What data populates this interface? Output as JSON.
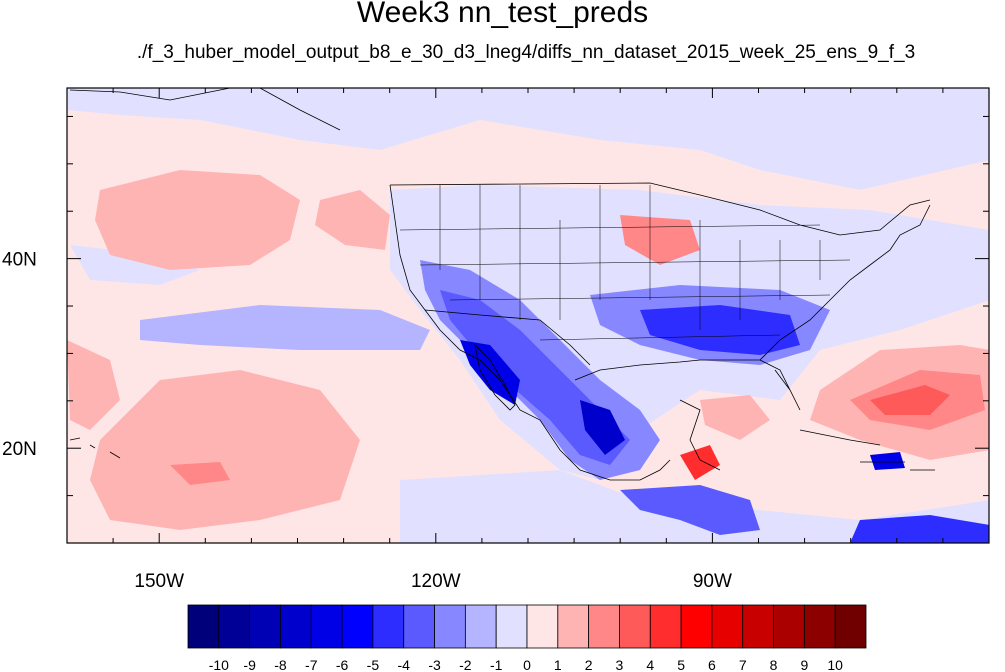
{
  "figure": {
    "title": "Week3 nn_test_preds",
    "subtitle": "./f_3_huber_model_output_b8_e_30_d3_lneg4/diffs_nn_dataset_2015_week_25_ens_9_f_3"
  },
  "map": {
    "projection": "cylindrical-equidistant",
    "lon_range": [
      -160,
      -60
    ],
    "lat_range": [
      10,
      58
    ],
    "lon_tick_labels": [
      {
        "lon": -150,
        "label": "150W"
      },
      {
        "lon": -120,
        "label": "120W"
      },
      {
        "lon": -90,
        "label": "90W"
      }
    ],
    "lat_tick_labels": [
      {
        "lat": 40,
        "label": "40N"
      },
      {
        "lat": 20,
        "label": "20N"
      }
    ],
    "features": [
      "coastlines",
      "us-state-boundaries",
      "country-boundaries"
    ]
  },
  "colorbar": {
    "orientation": "horizontal",
    "labels": [
      "-10",
      "-9",
      "-8",
      "-7",
      "-6",
      "-5",
      "-4",
      "-3",
      "-2",
      "-1",
      "0",
      "1",
      "2",
      "3",
      "4",
      "5",
      "6",
      "7",
      "8",
      "9",
      "10"
    ],
    "colors": [
      "#00007a",
      "#000096",
      "#0000b4",
      "#0000cd",
      "#0000e6",
      "#0000ff",
      "#2d2dff",
      "#5a5aff",
      "#8787ff",
      "#b4b4ff",
      "#e1e1ff",
      "#ffe6e6",
      "#ffb4b4",
      "#ff8787",
      "#ff5a5a",
      "#ff2d2d",
      "#ff0000",
      "#e60000",
      "#c80000",
      "#aa0000",
      "#8c0000",
      "#700000"
    ]
  }
}
